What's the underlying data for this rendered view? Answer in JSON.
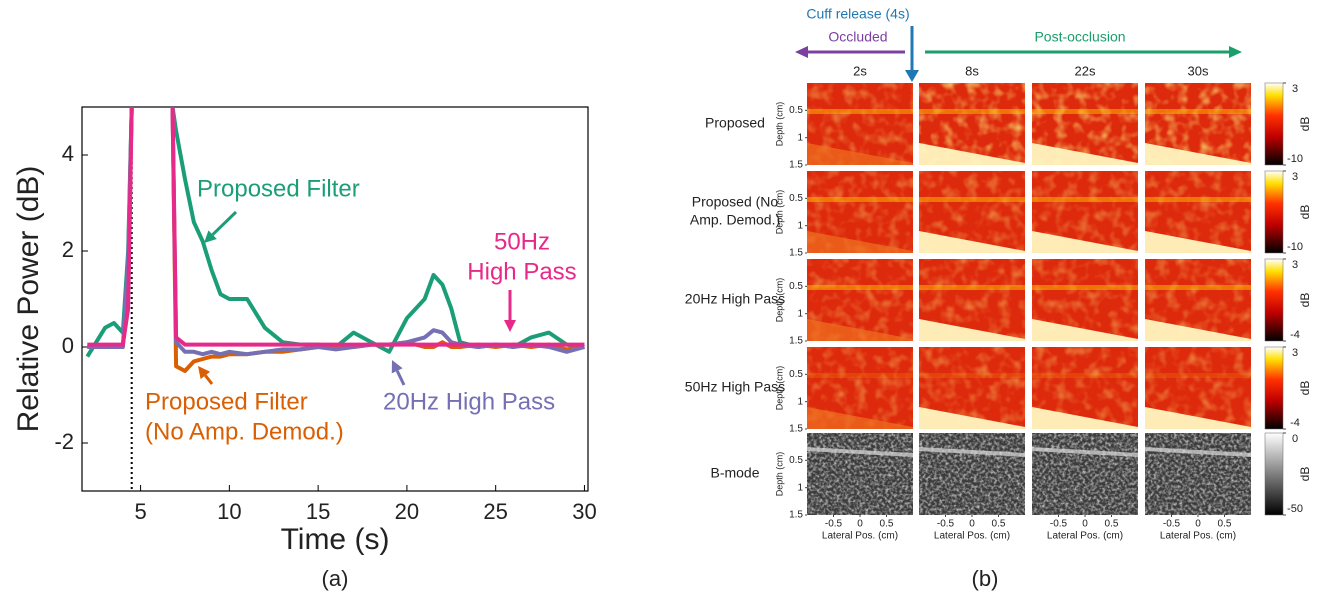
{
  "chart_data": [
    {
      "type": "line",
      "xlabel": "Time (s)",
      "ylabel": "Relative Power (dB)",
      "caption": "(a)",
      "xlim": [
        1.7,
        30.2
      ],
      "ylim": [
        -3,
        5
      ],
      "xticks": [
        5,
        10,
        15,
        20,
        25,
        30
      ],
      "yticks": [
        -2,
        0,
        2,
        4
      ],
      "vline": 4.5,
      "x": [
        2,
        2.5,
        3,
        3.5,
        4,
        4.3,
        4.5,
        4.7,
        5,
        5.5,
        6,
        6.5,
        6.8,
        7,
        7.5,
        8,
        8.5,
        9,
        9.5,
        10,
        11,
        12,
        13,
        14,
        15,
        16,
        17,
        18,
        19,
        20,
        21,
        21.5,
        22,
        22.5,
        23,
        24,
        25,
        26,
        27,
        28,
        29,
        30
      ],
      "series": [
        {
          "label": [
            "Proposed Filter"
          ],
          "color": "#1b9e77",
          "values": [
            -0.2,
            0.1,
            0.4,
            0.5,
            0.3,
            2,
            5,
            null,
            null,
            null,
            null,
            null,
            5,
            4.5,
            3.5,
            2.6,
            2.2,
            1.6,
            1.1,
            1.0,
            1.0,
            0.4,
            0.1,
            0.05,
            0.05,
            0,
            0.3,
            0.1,
            -0.1,
            0.6,
            1.0,
            1.5,
            1.3,
            0.8,
            0.1,
            0,
            0.05,
            0,
            0.2,
            0.3,
            0.05,
            0
          ]
        },
        {
          "label": [
            "Proposed Filter",
            "(No Amp. Demod.)"
          ],
          "color": "#d95f02",
          "values": [
            0,
            0,
            0,
            0,
            0,
            1.2,
            5,
            null,
            null,
            null,
            null,
            null,
            5,
            -0.4,
            -0.5,
            -0.3,
            -0.25,
            -0.2,
            -0.2,
            -0.15,
            -0.15,
            -0.1,
            -0.1,
            -0.05,
            0,
            0,
            0,
            0.05,
            0.05,
            0.1,
            0,
            0,
            0.1,
            0,
            0,
            0.05,
            0,
            0.05,
            0,
            0.05,
            -0.05,
            0
          ]
        },
        {
          "label": [
            "20Hz High Pass"
          ],
          "color": "#7570b3",
          "values": [
            0,
            0,
            0,
            0,
            0,
            1.8,
            5,
            null,
            null,
            null,
            null,
            null,
            5,
            0.1,
            -0.1,
            -0.1,
            -0.15,
            -0.1,
            -0.15,
            -0.1,
            -0.15,
            -0.1,
            -0.05,
            -0.05,
            0,
            -0.05,
            0,
            0.05,
            0.05,
            0.1,
            0.2,
            0.35,
            0.3,
            0.1,
            0.05,
            0,
            0.05,
            0,
            0.05,
            0,
            -0.1,
            0
          ]
        },
        {
          "label": [
            "50Hz",
            "High Pass"
          ],
          "color": "#e7298a",
          "values": [
            0.05,
            0.05,
            0.05,
            0.05,
            0.05,
            0.8,
            5,
            null,
            null,
            null,
            null,
            null,
            5,
            0.2,
            0.05,
            0.05,
            0.05,
            0.05,
            0.05,
            0.05,
            0.05,
            0.05,
            0.05,
            0.05,
            0.05,
            0.05,
            0.05,
            0.05,
            0.05,
            0.05,
            0.05,
            0.05,
            0.05,
            0.05,
            0.05,
            0.05,
            0.05,
            0.05,
            0.05,
            0.05,
            0.05,
            0.05
          ]
        }
      ]
    },
    {
      "type": "heatmap-grid",
      "caption": "(b)",
      "cuff_release": "Cuff release (4s)",
      "phases": [
        "Occluded",
        "Post-occlusion"
      ],
      "columns": [
        "2s",
        "8s",
        "22s",
        "30s"
      ],
      "ylabel": "Depth (cm)",
      "ylim": [
        0,
        1.5
      ],
      "yticks": [
        0.5,
        1,
        1.5
      ],
      "xlabel": "Lateral Pos. (cm)",
      "xlim": [
        -1,
        1
      ],
      "xticks": [
        -0.5,
        0,
        0.5
      ],
      "rows": [
        {
          "label": [
            "Proposed"
          ],
          "colormap": "hot",
          "colorbar": {
            "label": "dB",
            "clim": [
              -10,
              3
            ],
            "ticks": [
              -10,
              3
            ]
          }
        },
        {
          "label": [
            "Proposed (No",
            "Amp. Demod.)"
          ],
          "colormap": "hot",
          "colorbar": {
            "label": "dB",
            "clim": [
              -10,
              3
            ],
            "ticks": [
              -10,
              3
            ]
          }
        },
        {
          "label": [
            "20Hz High Pass"
          ],
          "colormap": "hot",
          "colorbar": {
            "label": "dB",
            "clim": [
              -4,
              3
            ],
            "ticks": [
              -4,
              3
            ]
          }
        },
        {
          "label": [
            "50Hz High Pass"
          ],
          "colormap": "hot",
          "colorbar": {
            "label": "dB",
            "clim": [
              -4,
              3
            ],
            "ticks": [
              -4,
              3
            ]
          }
        },
        {
          "label": [
            "B-mode"
          ],
          "colormap": "gray",
          "colorbar": {
            "label": "dB",
            "clim": [
              -50,
              0
            ],
            "ticks": [
              -50,
              0
            ]
          }
        }
      ]
    }
  ]
}
